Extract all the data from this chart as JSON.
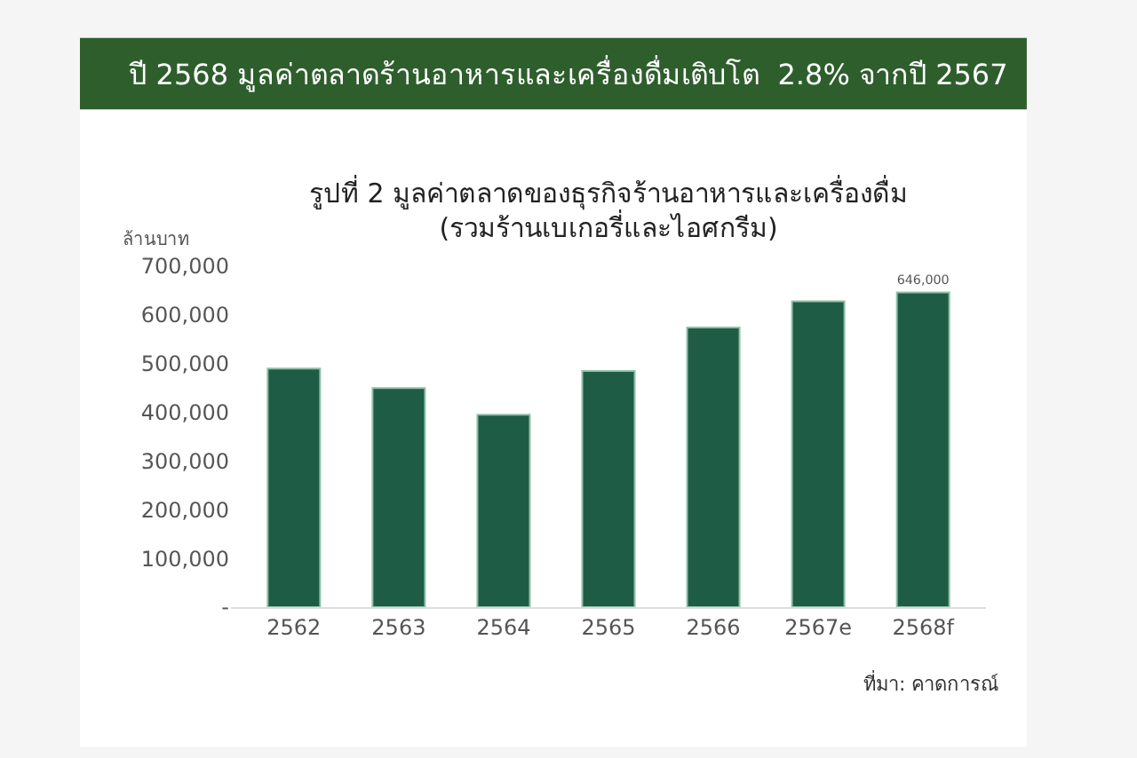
{
  "chart_data": {
    "type": "bar",
    "title": "ปี 2568 มูลค่าตลาดร้านอาหารและเครื่องดื่มเติบโต  2.8% จากปี 2567",
    "subtitle": "รูปที่ 2 มูลค่าตลาดของธุรกิจร้านอาหารและเครื่องดื่ม\n(รวมร้านเบเกอรี่และไอศกรีม)",
    "ylabel": "ล้านบาท",
    "categories": [
      "2562",
      "2563",
      "2564",
      "2565",
      "2566",
      "2567e",
      "2568f"
    ],
    "values": [
      490000,
      450000,
      395000,
      485000,
      574000,
      628000,
      646000
    ],
    "value_labels": [
      null,
      null,
      null,
      null,
      null,
      null,
      "646,000"
    ],
    "color": "#1f5c45",
    "ylim": [
      0,
      700000
    ],
    "yticks": [
      {
        "value": 0,
        "label": "-"
      },
      {
        "value": 100000,
        "label": "100,000"
      },
      {
        "value": 200000,
        "label": "200,000"
      },
      {
        "value": 300000,
        "label": "300,000"
      },
      {
        "value": 400000,
        "label": "400,000"
      },
      {
        "value": 500000,
        "label": "500,000"
      },
      {
        "value": 600000,
        "label": "600,000"
      },
      {
        "value": 700000,
        "label": "700,000"
      }
    ],
    "annotations": [
      "ที่มา: คาดการณ์"
    ]
  }
}
